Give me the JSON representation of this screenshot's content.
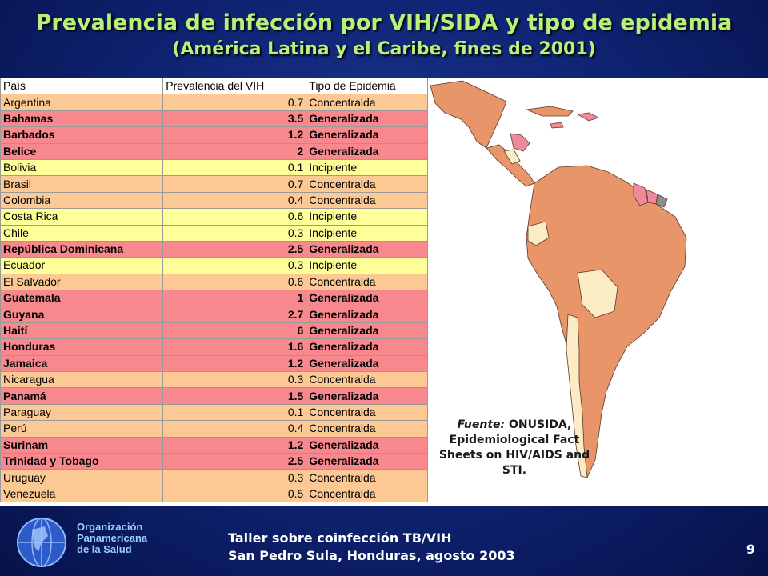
{
  "title": "Prevalencia de infección por VIH/SIDA y tipo de epidemia",
  "subtitle": "(América Latina y el Caribe, fines de 2001)",
  "table": {
    "headers": [
      "País",
      "Prevalencia del VIH",
      "Tipo de Epidemia"
    ],
    "rows": [
      {
        "country": "Argentina",
        "prevalence": "0.7",
        "type": "Concentralda"
      },
      {
        "country": "Bahamas",
        "prevalence": "3.5",
        "type": "Generalizada"
      },
      {
        "country": "Barbados",
        "prevalence": "1.2",
        "type": "Generalizada"
      },
      {
        "country": "Belice",
        "prevalence": "2",
        "type": "Generalizada"
      },
      {
        "country": "Bolivia",
        "prevalence": "0.1",
        "type": "Incipiente"
      },
      {
        "country": "Brasil",
        "prevalence": "0.7",
        "type": "Concentralda"
      },
      {
        "country": "Colombia",
        "prevalence": "0.4",
        "type": "Concentralda"
      },
      {
        "country": "Costa Rica",
        "prevalence": "0.6",
        "type": "Incipiente"
      },
      {
        "country": "Chile",
        "prevalence": "0.3",
        "type": "Incipiente"
      },
      {
        "country": "República Dominicana",
        "prevalence": "2.5",
        "type": "Generalizada"
      },
      {
        "country": "Ecuador",
        "prevalence": "0.3",
        "type": "Incipiente"
      },
      {
        "country": "El Salvador",
        "prevalence": "0.6",
        "type": "Concentralda"
      },
      {
        "country": "Guatemala",
        "prevalence": "1",
        "type": "Generalizada"
      },
      {
        "country": "Guyana",
        "prevalence": "2.7",
        "type": "Generalizada"
      },
      {
        "country": "Haití",
        "prevalence": "6",
        "type": "Generalizada"
      },
      {
        "country": "Honduras",
        "prevalence": "1.6",
        "type": "Generalizada"
      },
      {
        "country": "Jamaica",
        "prevalence": "1.2",
        "type": "Generalizada"
      },
      {
        "country": "Nicaragua",
        "prevalence": "0.3",
        "type": "Concentralda"
      },
      {
        "country": "Panamá",
        "prevalence": "1.5",
        "type": "Generalizada"
      },
      {
        "country": "Paraguay",
        "prevalence": "0.1",
        "type": "Concentralda"
      },
      {
        "country": "Perú",
        "prevalence": "0.4",
        "type": "Concentralda"
      },
      {
        "country": "Surinam",
        "prevalence": "1.2",
        "type": "Generalizada"
      },
      {
        "country": "Trinidad y Tobago",
        "prevalence": "2.5",
        "type": "Generalizada"
      },
      {
        "country": "Uruguay",
        "prevalence": "0.3",
        "type": "Concentralda"
      },
      {
        "country": "Venezuela",
        "prevalence": "0.5",
        "type": "Concentralda"
      }
    ]
  },
  "colors": {
    "concentrated": "#fcc893",
    "generalized": "#f7898e",
    "incipient": "#ffff99",
    "map_concentrated": "#e8956a",
    "map_generalized": "#f08a9a",
    "map_incipient": "#fbecc6",
    "map_nodata": "#8c8c8c"
  },
  "source": {
    "label": "Fuente:",
    "text": "ONUSIDA, Epidemiological Fact Sheets on HIV/AIDS and STI."
  },
  "organization": {
    "line1": "Organización",
    "line2": "Panamericana",
    "line3": "de la Salud"
  },
  "footer": {
    "line1": "Taller sobre coinfección TB/VIH",
    "line2": "San Pedro Sula, Honduras, agosto 2003"
  },
  "page_number": "9"
}
